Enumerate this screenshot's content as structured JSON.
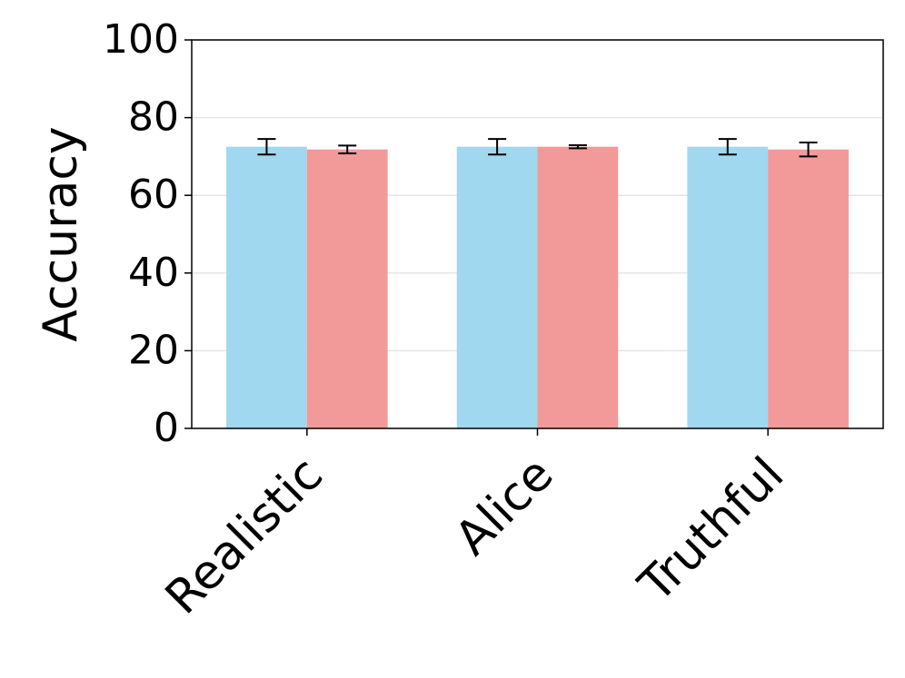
{
  "chart_data": {
    "type": "bar",
    "y_label": "Accuracy",
    "categories": [
      "Realistic",
      "Alice",
      "Truthful"
    ],
    "series": [
      {
        "color": "#a0d8ef",
        "values": [
          72.5,
          72.5,
          72.5
        ],
        "errors": [
          2.0,
          2.0,
          2.0
        ]
      },
      {
        "color": "#f29a99",
        "values": [
          71.8,
          72.5,
          71.8
        ],
        "errors": [
          1.0,
          0.4,
          1.8
        ]
      }
    ],
    "ylim": [
      0,
      100
    ],
    "yticks": [
      0,
      20,
      40,
      60,
      80,
      100
    ],
    "grid": true
  }
}
